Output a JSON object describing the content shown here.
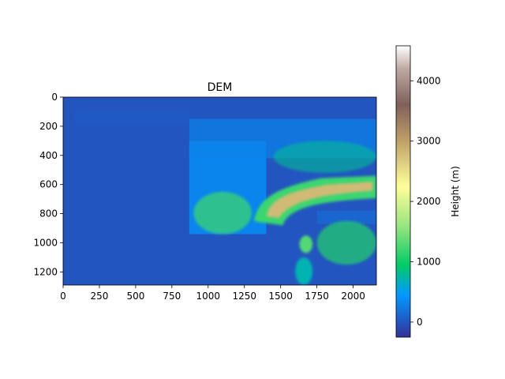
{
  "chart_data": {
    "type": "heatmap",
    "title": "DEM",
    "xlabel": "",
    "ylabel": "",
    "x_range": [
      0,
      2160
    ],
    "y_range": [
      0,
      1290
    ],
    "y_inverted": true,
    "x_ticks": [
      0,
      250,
      500,
      750,
      1000,
      1250,
      1500,
      1750,
      2000
    ],
    "y_ticks": [
      0,
      200,
      400,
      600,
      800,
      1000,
      1200
    ],
    "colormap": "terrain",
    "colorbar": {
      "label": "Height (m)",
      "range": [
        -250,
        4580
      ],
      "ticks": [
        0,
        1000,
        2000,
        3000,
        4000
      ],
      "stops": [
        {
          "v": -250,
          "color": "#333399"
        },
        {
          "v": 0,
          "color": "#2355c0"
        },
        {
          "v": 450,
          "color": "#0099ff"
        },
        {
          "v": 950,
          "color": "#00cc66"
        },
        {
          "v": 1600,
          "color": "#99e57f"
        },
        {
          "v": 2250,
          "color": "#ffff99"
        },
        {
          "v": 3000,
          "color": "#bfa168"
        },
        {
          "v": 3600,
          "color": "#80605a"
        },
        {
          "v": 4200,
          "color": "#bfa8a3"
        },
        {
          "v": 4580,
          "color": "#ffffff"
        }
      ]
    },
    "regions": [
      {
        "name": "sea-level-background",
        "height": 0
      },
      {
        "name": "central-france-lowlands",
        "x": [
          870,
          1400
        ],
        "y": [
          300,
          940
        ],
        "height": 380
      },
      {
        "name": "massif-central",
        "x": [
          900,
          1300
        ],
        "y": [
          650,
          940
        ],
        "height": 1200
      },
      {
        "name": "northern-plains",
        "x": [
          870,
          2160
        ],
        "y": [
          150,
          420
        ],
        "height": 300
      },
      {
        "name": "jura-and-black-forest",
        "x": [
          1450,
          2160
        ],
        "y": [
          300,
          520
        ],
        "height": 800
      },
      {
        "name": "alps-arc",
        "x": [
          1300,
          2160
        ],
        "y": [
          540,
          880
        ],
        "height": 2800
      },
      {
        "name": "apennines",
        "x": [
          1750,
          2160
        ],
        "y": [
          850,
          1150
        ],
        "height": 1100
      },
      {
        "name": "po-valley",
        "x": [
          1750,
          2160
        ],
        "y": [
          780,
          870
        ],
        "height": 120
      },
      {
        "name": "corsica",
        "x": [
          1630,
          1720
        ],
        "y": [
          950,
          1070
        ],
        "height": 1300
      },
      {
        "name": "sardinia",
        "x": [
          1600,
          1720
        ],
        "y": [
          1100,
          1290
        ],
        "height": 700
      },
      {
        "name": "english-coast-fragments",
        "x": [
          80,
          870
        ],
        "y": [
          100,
          180
        ],
        "height": 120
      }
    ]
  }
}
